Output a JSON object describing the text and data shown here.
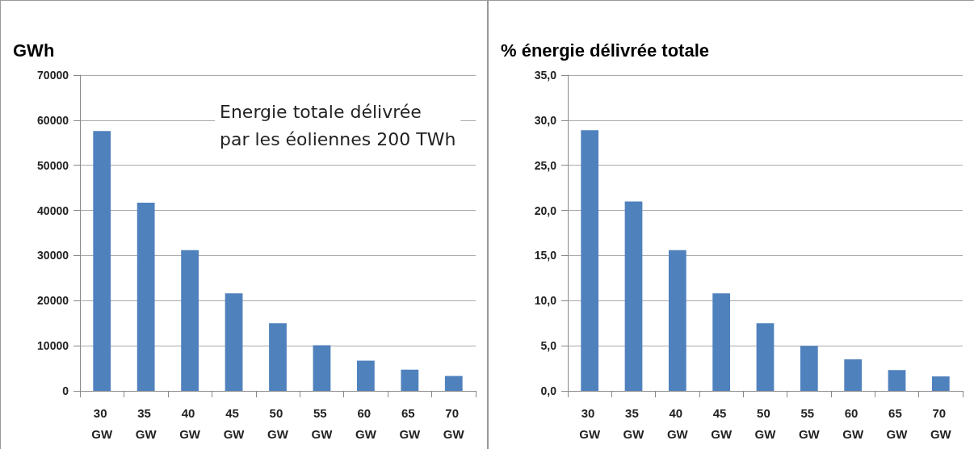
{
  "chart_data": [
    {
      "type": "bar",
      "ylabel": "GWh",
      "annotations": [
        "Energie totale délivrée\npar les éoliennes 200 TWh"
      ],
      "categories": [
        "30 GW",
        "35 GW",
        "40 GW",
        "45 GW",
        "50 GW",
        "55 GW",
        "60 GW",
        "65 GW",
        "70 GW"
      ],
      "values": [
        57600,
        41700,
        31200,
        21600,
        15000,
        10100,
        6700,
        4700,
        3300
      ],
      "color": "#4f81bd",
      "ylim": [
        0,
        70000
      ],
      "yticks": [
        0,
        10000,
        20000,
        30000,
        40000,
        50000,
        60000,
        70000
      ],
      "grid": "y"
    },
    {
      "type": "bar",
      "ylabel": "% énergie délivrée totale",
      "categories": [
        "30 GW",
        "35 GW",
        "40 GW",
        "45 GW",
        "50 GW",
        "55 GW",
        "60 GW",
        "65 GW",
        "70 GW"
      ],
      "values": [
        28.9,
        21.0,
        15.6,
        10.8,
        7.5,
        5.0,
        3.5,
        2.3,
        1.6
      ],
      "color": "#4f81bd",
      "ylim": [
        0,
        35
      ],
      "yticks": [
        {
          "value": 0,
          "label": "0,0"
        },
        {
          "value": 5,
          "label": "5,0"
        },
        {
          "value": 10,
          "label": "10,0"
        },
        {
          "value": 15,
          "label": "15,0"
        },
        {
          "value": 20,
          "label": "20,0"
        },
        {
          "value": 25,
          "label": "25,0"
        },
        {
          "value": 30,
          "label": "30,0"
        },
        {
          "value": 35,
          "label": "35,0"
        }
      ],
      "grid": "y"
    }
  ]
}
